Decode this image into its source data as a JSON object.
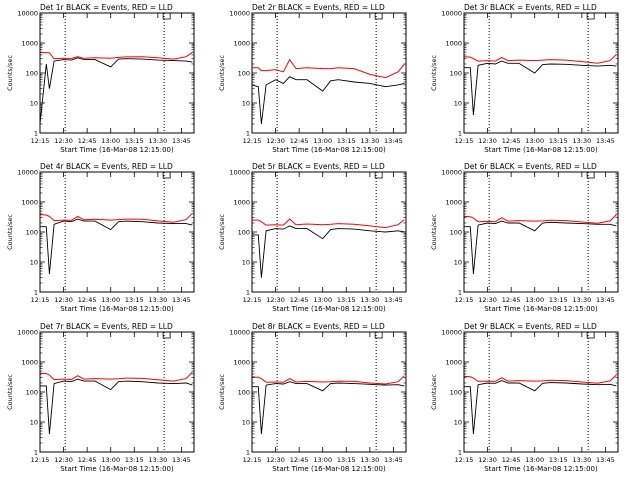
{
  "chart_data": [
    {
      "type": "line",
      "title": "Det 1r BLACK = Events, RED = LLD",
      "xlabel": "Start Time (16-Mar-08 12:15:00)",
      "ylabel": "Counts/sec",
      "y_scale": "log",
      "ylim": [
        1,
        10000
      ],
      "y_ticks": [
        1,
        10,
        100,
        1000,
        10000
      ],
      "xlim": [
        "12:15",
        "13:53"
      ],
      "x_ticks": [
        "12:15",
        "12:30",
        "12:45",
        "13:00",
        "13:15",
        "13:30",
        "13:45"
      ],
      "vertical_dotted_lines": [
        "12:31",
        "13:34"
      ],
      "x_breakpoints": [
        "12:15",
        "12:19",
        "12:21",
        "12:24",
        "12:30",
        "12:35",
        "12:39",
        "12:43",
        "12:50",
        "13:00",
        "13:05",
        "13:10",
        "13:20",
        "13:30",
        "13:40",
        "13:48",
        "13:52"
      ],
      "series": [
        {
          "color": "#000000",
          "values": [
            2,
            200,
            30,
            250,
            280,
            270,
            320,
            280,
            280,
            160,
            290,
            300,
            290,
            270,
            260,
            250,
            230
          ]
        },
        {
          "color": "#ff0000",
          "values": [
            480,
            480,
            470,
            300,
            310,
            305,
            350,
            310,
            320,
            310,
            330,
            345,
            350,
            320,
            290,
            350,
            480
          ]
        }
      ]
    },
    {
      "type": "line",
      "title": "Det 2r BLACK = Events, RED = LLD",
      "xlabel": "Start Time (16-Mar-08 12:15:00)",
      "ylabel": "Counts/sec",
      "y_scale": "log",
      "ylim": [
        1,
        10000
      ],
      "y_ticks": [
        1,
        10,
        100,
        1000,
        10000
      ],
      "xlim": [
        "12:15",
        "13:53"
      ],
      "x_ticks": [
        "12:15",
        "12:30",
        "12:45",
        "13:00",
        "13:15",
        "13:30",
        "13:45"
      ],
      "vertical_dotted_lines": [
        "12:31",
        "13:34"
      ],
      "x_breakpoints": [
        "12:15",
        "12:19",
        "12:21",
        "12:24",
        "12:30",
        "12:35",
        "12:39",
        "12:43",
        "12:50",
        "13:00",
        "13:05",
        "13:10",
        "13:20",
        "13:30",
        "13:40",
        "13:48",
        "13:52"
      ],
      "series": [
        {
          "color": "#000000",
          "values": [
            40,
            35,
            2,
            40,
            60,
            45,
            75,
            60,
            60,
            25,
            55,
            60,
            50,
            45,
            35,
            40,
            45
          ]
        },
        {
          "color": "#ff0000",
          "values": [
            150,
            150,
            120,
            120,
            130,
            110,
            280,
            140,
            150,
            140,
            140,
            150,
            140,
            90,
            70,
            110,
            200
          ]
        }
      ]
    },
    {
      "type": "line",
      "title": "Det 3r BLACK = Events, RED = LLD",
      "xlabel": "Start Time (16-Mar-08 12:15:00)",
      "ylabel": "Counts/sec",
      "y_scale": "log",
      "ylim": [
        1,
        10000
      ],
      "y_ticks": [
        1,
        10,
        100,
        1000,
        10000
      ],
      "xlim": [
        "12:15",
        "13:53"
      ],
      "x_ticks": [
        "12:15",
        "12:30",
        "12:45",
        "13:00",
        "13:15",
        "13:30",
        "13:45"
      ],
      "vertical_dotted_lines": [
        "12:31",
        "13:34"
      ],
      "x_breakpoints": [
        "12:15",
        "12:19",
        "12:21",
        "12:24",
        "12:30",
        "12:35",
        "12:39",
        "12:43",
        "12:50",
        "13:00",
        "13:05",
        "13:10",
        "13:20",
        "13:30",
        "13:40",
        "13:48",
        "13:52"
      ],
      "series": [
        {
          "color": "#000000",
          "values": [
            150,
            150,
            4,
            180,
            210,
            200,
            250,
            210,
            210,
            100,
            190,
            200,
            195,
            180,
            170,
            180,
            170
          ]
        },
        {
          "color": "#ff0000",
          "values": [
            350,
            340,
            300,
            250,
            260,
            250,
            330,
            260,
            270,
            260,
            270,
            280,
            270,
            240,
            210,
            260,
            420
          ]
        }
      ]
    },
    {
      "type": "line",
      "title": "Det 4r BLACK = Events, RED = LLD",
      "xlabel": "Start Time (16-Mar-08 12:15:00)",
      "ylabel": "Counts/sec",
      "y_scale": "log",
      "ylim": [
        1,
        10000
      ],
      "y_ticks": [
        1,
        10,
        100,
        1000,
        10000
      ],
      "xlim": [
        "12:15",
        "13:53"
      ],
      "x_ticks": [
        "12:15",
        "12:30",
        "12:45",
        "13:00",
        "13:15",
        "13:30",
        "13:45"
      ],
      "vertical_dotted_lines": [
        "12:31",
        "13:34"
      ],
      "x_breakpoints": [
        "12:15",
        "12:19",
        "12:21",
        "12:24",
        "12:30",
        "12:35",
        "12:39",
        "12:43",
        "12:50",
        "13:00",
        "13:05",
        "13:10",
        "13:20",
        "13:30",
        "13:40",
        "13:48",
        "13:52"
      ],
      "series": [
        {
          "color": "#000000",
          "values": [
            150,
            150,
            4,
            180,
            230,
            220,
            270,
            230,
            230,
            120,
            220,
            230,
            220,
            200,
            190,
            190,
            170
          ]
        },
        {
          "color": "#ff0000",
          "values": [
            380,
            370,
            330,
            240,
            250,
            245,
            330,
            255,
            265,
            250,
            260,
            270,
            265,
            235,
            210,
            260,
            420
          ]
        }
      ]
    },
    {
      "type": "line",
      "title": "Det 5r BLACK = Events, RED = LLD",
      "xlabel": "Start Time (16-Mar-08 12:15:00)",
      "ylabel": "Counts/sec",
      "y_scale": "log",
      "ylim": [
        1,
        10000
      ],
      "y_ticks": [
        1,
        10,
        100,
        1000,
        10000
      ],
      "xlim": [
        "12:15",
        "13:53"
      ],
      "x_ticks": [
        "12:15",
        "12:30",
        "12:45",
        "13:00",
        "13:15",
        "13:30",
        "13:45"
      ],
      "vertical_dotted_lines": [
        "12:31",
        "13:34"
      ],
      "x_breakpoints": [
        "12:15",
        "12:19",
        "12:21",
        "12:24",
        "12:30",
        "12:35",
        "12:39",
        "12:43",
        "12:50",
        "13:00",
        "13:05",
        "13:10",
        "13:20",
        "13:30",
        "13:40",
        "13:48",
        "13:52"
      ],
      "series": [
        {
          "color": "#000000",
          "values": [
            80,
            80,
            3,
            110,
            130,
            125,
            160,
            130,
            130,
            60,
            120,
            130,
            125,
            110,
            100,
            110,
            100
          ]
        },
        {
          "color": "#ff0000",
          "values": [
            250,
            250,
            220,
            170,
            175,
            170,
            270,
            175,
            185,
            175,
            180,
            190,
            180,
            160,
            140,
            175,
            260
          ]
        }
      ]
    },
    {
      "type": "line",
      "title": "Det 6r BLACK = Events, RED = LLD",
      "xlabel": "Start Time (16-Mar-08 12:15:00)",
      "ylabel": "Counts/sec",
      "y_scale": "log",
      "ylim": [
        1,
        10000
      ],
      "y_ticks": [
        1,
        10,
        100,
        1000,
        10000
      ],
      "xlim": [
        "12:15",
        "13:53"
      ],
      "x_ticks": [
        "12:15",
        "12:30",
        "12:45",
        "13:00",
        "13:15",
        "13:30",
        "13:45"
      ],
      "vertical_dotted_lines": [
        "12:31",
        "13:34"
      ],
      "x_breakpoints": [
        "12:15",
        "12:19",
        "12:21",
        "12:24",
        "12:30",
        "12:35",
        "12:39",
        "12:43",
        "12:50",
        "13:00",
        "13:05",
        "13:10",
        "13:20",
        "13:30",
        "13:40",
        "13:48",
        "13:52"
      ],
      "series": [
        {
          "color": "#000000",
          "values": [
            150,
            150,
            4,
            170,
            200,
            190,
            230,
            200,
            200,
            110,
            200,
            210,
            200,
            190,
            180,
            180,
            160
          ]
        },
        {
          "color": "#ff0000",
          "values": [
            330,
            320,
            290,
            220,
            225,
            220,
            300,
            230,
            240,
            230,
            235,
            245,
            240,
            215,
            195,
            235,
            380
          ]
        }
      ]
    },
    {
      "type": "line",
      "title": "Det 7r BLACK = Events, RED = LLD",
      "xlabel": "Start Time (16-Mar-08 12:15:00)",
      "ylabel": "Counts/sec",
      "y_scale": "log",
      "ylim": [
        1,
        10000
      ],
      "y_ticks": [
        1,
        10,
        100,
        1000,
        10000
      ],
      "xlim": [
        "12:15",
        "13:53"
      ],
      "x_ticks": [
        "12:15",
        "12:30",
        "12:45",
        "13:00",
        "13:15",
        "13:30",
        "13:45"
      ],
      "vertical_dotted_lines": [
        "12:31",
        "13:34"
      ],
      "x_breakpoints": [
        "12:15",
        "12:19",
        "12:21",
        "12:24",
        "12:30",
        "12:35",
        "12:39",
        "12:43",
        "12:50",
        "13:00",
        "13:05",
        "13:10",
        "13:20",
        "13:30",
        "13:40",
        "13:48",
        "13:52"
      ],
      "series": [
        {
          "color": "#000000",
          "values": [
            160,
            160,
            4,
            190,
            230,
            220,
            270,
            230,
            230,
            120,
            220,
            230,
            220,
            200,
            190,
            200,
            170
          ]
        },
        {
          "color": "#ff0000",
          "values": [
            420,
            410,
            370,
            260,
            270,
            260,
            350,
            270,
            280,
            270,
            275,
            290,
            285,
            255,
            230,
            280,
            460
          ]
        }
      ]
    },
    {
      "type": "line",
      "title": "Det 8r BLACK = Events, RED = LLD",
      "xlabel": "Start Time (16-Mar-08 12:15:00)",
      "ylabel": "Counts/sec",
      "y_scale": "log",
      "ylim": [
        1,
        10000
      ],
      "y_ticks": [
        1,
        10,
        100,
        1000,
        10000
      ],
      "xlim": [
        "12:15",
        "13:53"
      ],
      "x_ticks": [
        "12:15",
        "12:30",
        "12:45",
        "13:00",
        "13:15",
        "13:30",
        "13:45"
      ],
      "vertical_dotted_lines": [
        "12:31",
        "13:34"
      ],
      "x_breakpoints": [
        "12:15",
        "12:19",
        "12:21",
        "12:24",
        "12:30",
        "12:35",
        "12:39",
        "12:43",
        "12:50",
        "13:00",
        "13:05",
        "13:10",
        "13:20",
        "13:30",
        "13:40",
        "13:48",
        "13:52"
      ],
      "series": [
        {
          "color": "#000000",
          "values": [
            150,
            150,
            4,
            170,
            190,
            185,
            220,
            190,
            190,
            110,
            190,
            200,
            190,
            180,
            170,
            175,
            160
          ]
        },
        {
          "color": "#ff0000",
          "values": [
            320,
            310,
            280,
            210,
            215,
            210,
            280,
            215,
            225,
            215,
            220,
            230,
            225,
            200,
            185,
            220,
            350
          ]
        }
      ]
    },
    {
      "type": "line",
      "title": "Det 9r BLACK = Events, RED = LLD",
      "xlabel": "Start Time (16-Mar-08 12:15:00)",
      "ylabel": "Counts/sec",
      "y_scale": "log",
      "ylim": [
        1,
        10000
      ],
      "y_ticks": [
        1,
        10,
        100,
        1000,
        10000
      ],
      "xlim": [
        "12:15",
        "13:53"
      ],
      "x_ticks": [
        "12:15",
        "12:30",
        "12:45",
        "13:00",
        "13:15",
        "13:30",
        "13:45"
      ],
      "vertical_dotted_lines": [
        "12:31",
        "13:34"
      ],
      "x_breakpoints": [
        "12:15",
        "12:19",
        "12:21",
        "12:24",
        "12:30",
        "12:35",
        "12:39",
        "12:43",
        "12:50",
        "13:00",
        "13:05",
        "13:10",
        "13:20",
        "13:30",
        "13:40",
        "13:48",
        "13:52"
      ],
      "series": [
        {
          "color": "#000000",
          "values": [
            150,
            150,
            4,
            175,
            200,
            195,
            240,
            200,
            200,
            110,
            195,
            205,
            200,
            185,
            175,
            180,
            160
          ]
        },
        {
          "color": "#ff0000",
          "values": [
            330,
            320,
            290,
            225,
            230,
            225,
            300,
            230,
            240,
            230,
            235,
            245,
            240,
            215,
            195,
            235,
            370
          ]
        }
      ]
    }
  ]
}
